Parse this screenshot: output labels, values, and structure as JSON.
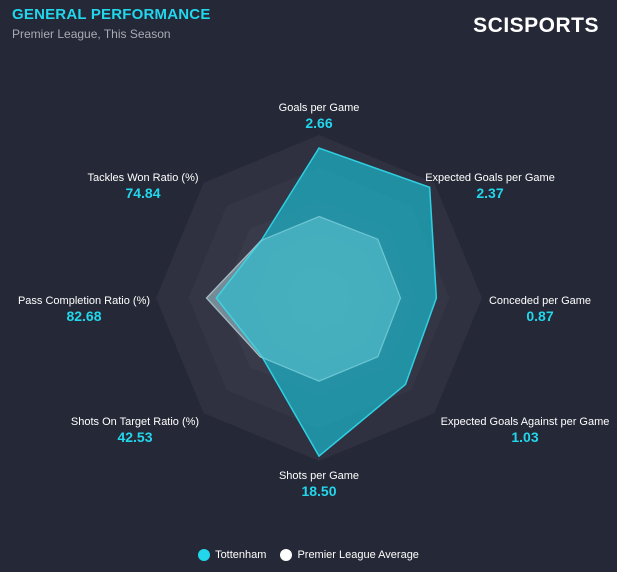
{
  "header": {
    "title": "GENERAL PERFORMANCE",
    "subtitle": "Premier League, This Season",
    "logo": "SCISPORTS"
  },
  "chart_data": {
    "type": "radar",
    "axes": [
      {
        "label": "Goals per Game",
        "value": "2.66"
      },
      {
        "label": "Expected Goals per Game",
        "value": "2.37"
      },
      {
        "label": "Conceded per Game",
        "value": "0.87"
      },
      {
        "label": "Expected Goals Against per Game",
        "value": "1.03"
      },
      {
        "label": "Shots per Game",
        "value": "18.50"
      },
      {
        "label": "Shots On Target Ratio (%)",
        "value": "42.53"
      },
      {
        "label": "Pass Completion Ratio (%)",
        "value": "82.68"
      },
      {
        "label": "Tackles Won Ratio (%)",
        "value": "74.84"
      }
    ],
    "series": [
      {
        "name": "Tottenham",
        "color": "#22d6ec",
        "scores": [
          0.92,
          0.96,
          0.72,
          0.75,
          0.97,
          0.5,
          0.63,
          0.5
        ]
      },
      {
        "name": "Premier League Average",
        "color": "#ffffff",
        "scores": [
          0.5,
          0.51,
          0.5,
          0.51,
          0.51,
          0.51,
          0.69,
          0.5
        ]
      }
    ],
    "rings": 5,
    "range": [
      0,
      1
    ]
  },
  "colors": {
    "background": "#252836",
    "accent": "#22d6ec"
  }
}
